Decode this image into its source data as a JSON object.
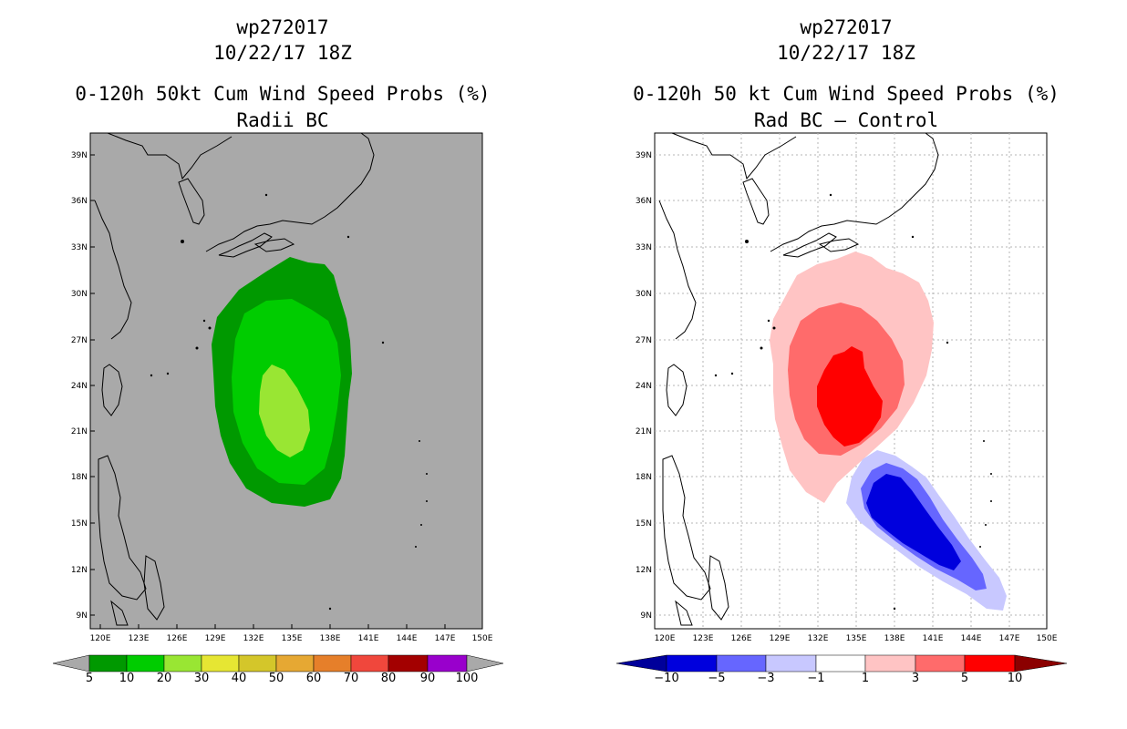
{
  "left_panel": {
    "title_lines": [
      "wp272017",
      "10/22/17 18Z",
      "0-120h 50kt Cum Wind Speed Probs (%)",
      "Radii BC"
    ],
    "background_color": "#a9a9a9",
    "colorbar": {
      "labels": [
        "5",
        "10",
        "20",
        "30",
        "40",
        "50",
        "60",
        "70",
        "80",
        "90",
        "100"
      ],
      "colors": [
        "#009900",
        "#00cc00",
        "#99e633",
        "#e6e633",
        "#d4c62a",
        "#e6a833",
        "#e67f2a",
        "#f0473c",
        "#a30000",
        "#9900cc"
      ],
      "end_color": "#a9a9a9"
    }
  },
  "right_panel": {
    "title_lines": [
      "wp272017",
      "10/22/17 18Z",
      "0-120h 50 kt Cum Wind Speed Probs (%)",
      "Rad BC – Control"
    ],
    "background_color": "#ffffff",
    "colorbar": {
      "labels": [
        "−10",
        "−5",
        "−3",
        "−1",
        "1",
        "3",
        "5",
        "10"
      ],
      "colors": [
        "#0000dd",
        "#6666ff",
        "#c8c8ff",
        "#ffffff",
        "#ffc4c4",
        "#ff6b6b",
        "#ff0000"
      ],
      "left_end_color": "#00009a",
      "right_end_color": "#8b0000"
    }
  },
  "axes": {
    "lon_labels": [
      "120E",
      "123E",
      "126E",
      "129E",
      "132E",
      "135E",
      "138E",
      "141E",
      "144E",
      "147E",
      "150E"
    ],
    "lat_labels": [
      "39N",
      "36N",
      "33N",
      "30N",
      "27N",
      "24N",
      "21N",
      "18N",
      "15N",
      "12N",
      "9N"
    ]
  }
}
